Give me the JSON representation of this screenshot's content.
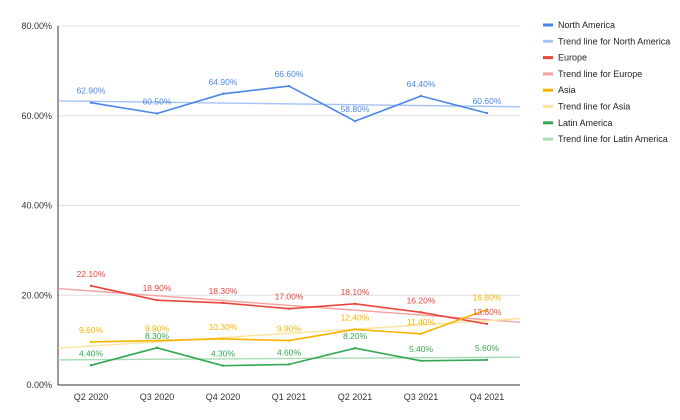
{
  "chart_data": {
    "type": "line",
    "categories": [
      "Q2 2020",
      "Q3 2020",
      "Q4 2020",
      "Q1 2021",
      "Q2 2021",
      "Q3 2021",
      "Q4 2021"
    ],
    "y_ticks": [
      "0.00%",
      "20.00%",
      "40.00%",
      "60.00%",
      "80.00%"
    ],
    "ylim": [
      0,
      80
    ],
    "grid": "horizontal",
    "legend_position": "right",
    "series": [
      {
        "name": "North America",
        "color": "#4a86e8",
        "values": [
          62.9,
          60.5,
          64.9,
          66.6,
          58.8,
          64.4,
          60.6
        ],
        "labels": [
          "62.90%",
          "60.50%",
          "64.90%",
          "66.60%",
          "58.80%",
          "64.40%",
          "60.60%"
        ]
      },
      {
        "name": "Europe",
        "color": "#e8453c",
        "values": [
          22.1,
          18.9,
          18.3,
          17.0,
          18.1,
          16.2,
          13.6
        ],
        "labels": [
          "22.10%",
          "18.90%",
          "18.30%",
          "17.00%",
          "18.10%",
          "16.20%",
          "13.60%"
        ]
      },
      {
        "name": "Asia",
        "color": "#f6b400",
        "values": [
          9.6,
          9.9,
          10.3,
          9.9,
          12.4,
          11.4,
          16.8
        ],
        "labels": [
          "9.60%",
          "9.90%",
          "10.30%",
          "9.90%",
          "12.40%",
          "11.40%",
          "16.80%"
        ]
      },
      {
        "name": "Latin America",
        "color": "#34a853",
        "values": [
          4.4,
          8.3,
          4.3,
          4.6,
          8.2,
          5.4,
          5.6
        ],
        "labels": [
          "4.40%",
          "8.30%",
          "4.30%",
          "4.60%",
          "8.20%",
          "5.40%",
          "5.60%"
        ]
      }
    ],
    "trend_lines": [
      {
        "name": "Trend line for North America",
        "color": "#a4c2f4",
        "start": 63.3,
        "end": 62.0
      },
      {
        "name": "Trend line for Europe",
        "color": "#f4a3a0",
        "start": 21.5,
        "end": 14.0
      },
      {
        "name": "Trend line for Asia",
        "color": "#fce29a",
        "start": 8.2,
        "end": 14.8
      },
      {
        "name": "Trend line for Latin America",
        "color": "#a8dcb5",
        "start": 5.6,
        "end": 6.2
      }
    ],
    "legend": [
      {
        "label": "North America",
        "color": "#4a86e8"
      },
      {
        "label": "Trend line for North America",
        "color": "#a4c2f4"
      },
      {
        "label": "Europe",
        "color": "#e8453c"
      },
      {
        "label": "Trend line for Europe",
        "color": "#f4a3a0"
      },
      {
        "label": "Asia",
        "color": "#f6b400"
      },
      {
        "label": "Trend line for Asia",
        "color": "#fce29a"
      },
      {
        "label": "Latin America",
        "color": "#34a853"
      },
      {
        "label": "Trend line for Latin America",
        "color": "#a8dcb5"
      }
    ]
  }
}
